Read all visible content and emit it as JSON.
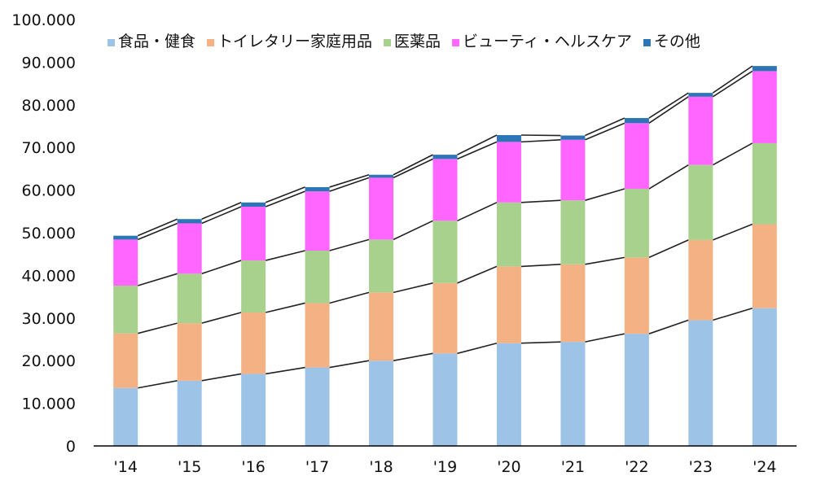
{
  "chart_data": {
    "type": "bar",
    "stacked": true,
    "title": "",
    "xlabel": "",
    "ylabel": "",
    "ylim": [
      0,
      100000
    ],
    "yticks": [
      "0",
      "10.000",
      "20.000",
      "30.000",
      "40.000",
      "50.000",
      "60.000",
      "70.000",
      "80.000",
      "90.000",
      "100.000"
    ],
    "grid": false,
    "legend_position": "top",
    "series_lines": true,
    "categories": [
      "'14",
      "'15",
      "'16",
      "'17",
      "'18",
      "'19",
      "'20",
      "'21",
      "'22",
      "'23",
      "'24"
    ],
    "series": [
      {
        "name": "食品・健食",
        "color": "#9dc3e6",
        "values": [
          13600,
          15300,
          16900,
          18400,
          20000,
          21700,
          24100,
          24400,
          26300,
          29500,
          32300
        ]
      },
      {
        "name": "トイレタリー家庭用品",
        "color": "#f4b183",
        "values": [
          12800,
          13500,
          14400,
          15100,
          16000,
          16500,
          18000,
          18200,
          17900,
          18800,
          19700
        ]
      },
      {
        "name": "医薬品",
        "color": "#a9d18e",
        "values": [
          11200,
          11600,
          12200,
          12300,
          12400,
          14600,
          15000,
          15000,
          16100,
          17600,
          19000
        ]
      },
      {
        "name": "ビューティ・ヘルスケア",
        "color": "#ff66ff",
        "values": [
          10800,
          11800,
          12600,
          13900,
          14500,
          14500,
          14200,
          14200,
          15400,
          16000,
          16900
        ]
      },
      {
        "name": "その他",
        "color": "#2e75b6",
        "values": [
          900,
          1000,
          1000,
          1000,
          700,
          1000,
          1600,
          1000,
          1200,
          900,
          1200
        ]
      }
    ]
  }
}
